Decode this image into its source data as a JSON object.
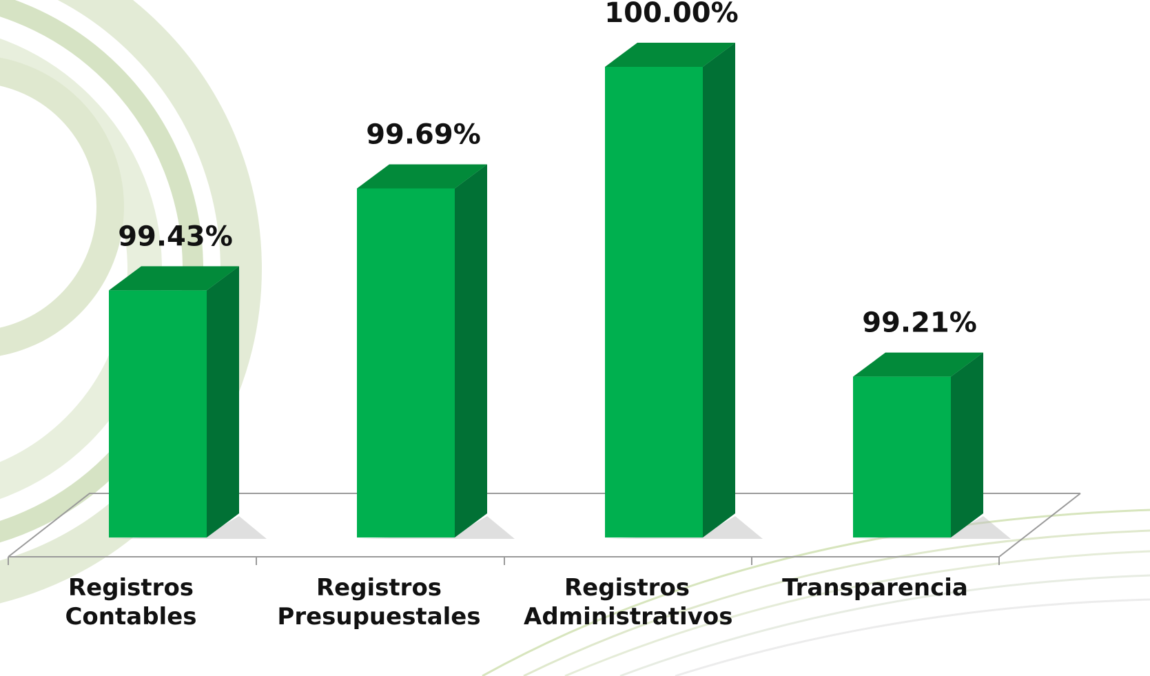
{
  "chart_data": {
    "type": "bar3d",
    "categories": [
      "Registros Contables",
      "Registros Presupuestales",
      "Registros Administrativos",
      "Transparencia"
    ],
    "values": [
      99.43,
      99.69,
      100.0,
      99.21
    ],
    "value_labels": [
      "99.43%",
      "99.69%",
      "100.00%",
      "99.21%"
    ],
    "color": "#00b04f",
    "ylim": [
      98.8,
      100
    ]
  }
}
